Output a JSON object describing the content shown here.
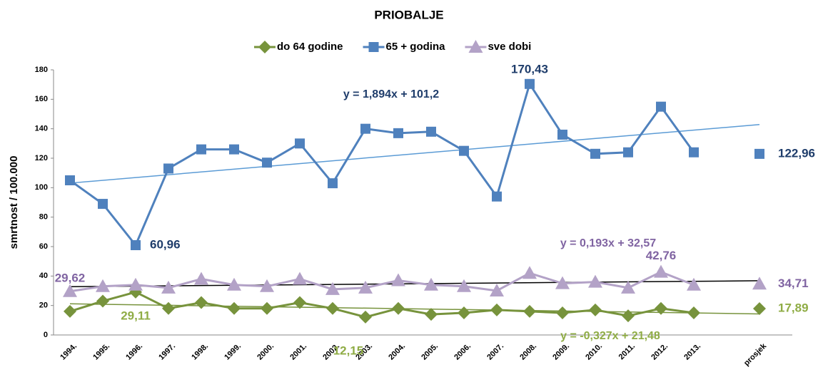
{
  "chart_data": {
    "type": "line",
    "title": "PRIOBALJE",
    "y_label": "smrtnost / 100.000",
    "categories": [
      "1994.",
      "1995.",
      "1996.",
      "1997.",
      "1998.",
      "1999.",
      "2000.",
      "2001.",
      "2002.",
      "2003.",
      "2004.",
      "2005.",
      "2006.",
      "2007.",
      "2008.",
      "2009.",
      "2010.",
      "2011.",
      "2012.",
      "2013.",
      null,
      "prosjek"
    ],
    "ylim": [
      0,
      180
    ],
    "yticks": [
      0,
      20,
      40,
      60,
      80,
      100,
      120,
      140,
      160,
      180
    ],
    "grid": false,
    "legend": "top",
    "series": [
      {
        "name": "do 64 godine",
        "color": "#77933c",
        "label_color": "#8fac45",
        "marker": "diamond",
        "values": [
          16,
          23,
          29.11,
          18,
          22,
          18,
          18,
          22,
          18,
          12.15,
          18,
          14,
          15,
          17,
          16,
          15,
          17,
          13,
          18,
          15,
          null,
          17.89
        ],
        "value_labels": [
          null,
          null,
          "29,11",
          null,
          null,
          null,
          null,
          null,
          null,
          "12,15",
          null,
          null,
          null,
          null,
          null,
          null,
          null,
          null,
          null,
          null,
          null,
          "17,89"
        ],
        "trend": {
          "label": "y = -0,327x + 21,48",
          "slope": -0.327,
          "intercept": 21.48,
          "color": "#77933c"
        }
      },
      {
        "name": "65 + godina",
        "color": "#4f81bd",
        "label_color": "#1f3d6b",
        "marker": "square",
        "values": [
          105,
          89,
          60.96,
          113,
          126,
          126,
          117,
          130,
          103,
          140,
          137,
          138,
          125,
          94,
          170.43,
          136,
          123,
          124,
          155,
          124,
          null,
          122.96
        ],
        "value_labels": [
          null,
          null,
          "60,96",
          null,
          null,
          null,
          null,
          null,
          null,
          null,
          null,
          null,
          null,
          null,
          "170,43",
          null,
          null,
          null,
          null,
          null,
          null,
          "122,96"
        ],
        "trend": {
          "label": "y = 1,894x + 101,2",
          "slope": 1.894,
          "intercept": 101.2,
          "color": "#5b9bd5"
        }
      },
      {
        "name": "sve dobi",
        "color": "#b3a2c7",
        "label_color": "#8064a2",
        "marker": "triangle",
        "values": [
          29.62,
          33,
          34,
          32,
          38,
          34,
          33,
          38,
          31,
          32,
          37,
          34,
          33,
          30,
          42,
          35,
          36,
          32,
          42.76,
          34,
          null,
          34.71
        ],
        "value_labels": [
          "29,62",
          null,
          null,
          null,
          null,
          null,
          null,
          null,
          null,
          null,
          null,
          null,
          null,
          null,
          null,
          null,
          null,
          null,
          "42,76",
          null,
          null,
          "34,71"
        ],
        "trend": {
          "label": "y = 0,193x + 32,57",
          "slope": 0.193,
          "intercept": 32.57,
          "color": "#000000"
        }
      }
    ]
  }
}
